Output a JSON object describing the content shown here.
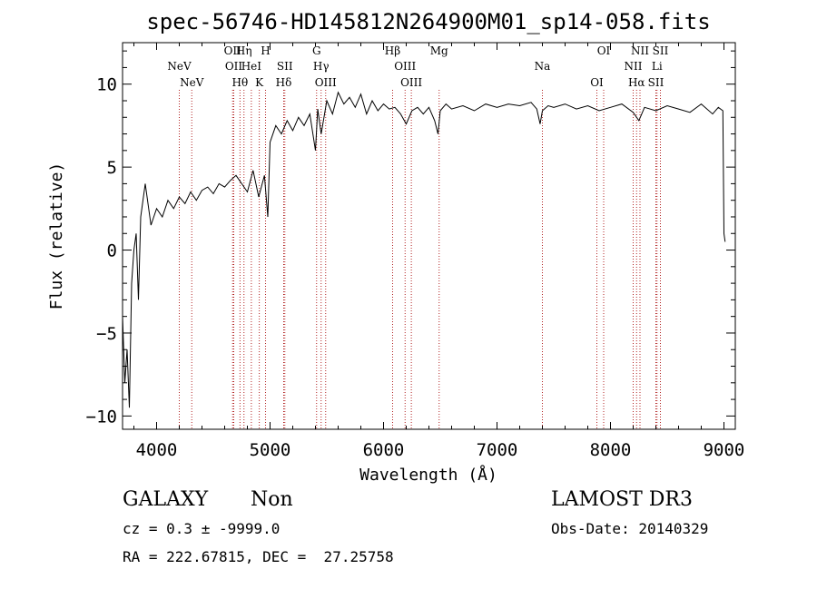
{
  "chart_data": {
    "type": "line",
    "title": "spec-56746-HD145812N264900M01_sp14-058.fits",
    "xlabel": "Wavelength (Å)",
    "ylabel": "Flux (relative)",
    "xlim": [
      3700,
      9100
    ],
    "ylim": [
      -10.8,
      12.5
    ],
    "xticks": [
      4000,
      5000,
      6000,
      7000,
      8000,
      9000
    ],
    "yticks": [
      -10,
      -5,
      0,
      5,
      10
    ],
    "grid": false,
    "series": [
      {
        "values_x": [
          3700,
          3720,
          3740,
          3760,
          3780,
          3800,
          3820,
          3840,
          3860,
          3880,
          3900,
          3950,
          4000,
          4050,
          4100,
          4150,
          4200,
          4250,
          4300,
          4350,
          4400,
          4450,
          4500,
          4550,
          4600,
          4650,
          4700,
          4750,
          4800,
          4850,
          4900,
          4950,
          4980,
          5000,
          5050,
          5100,
          5150,
          5200,
          5250,
          5300,
          5350,
          5400,
          5420,
          5450,
          5500,
          5550,
          5600,
          5650,
          5700,
          5750,
          5800,
          5850,
          5900,
          5950,
          6000,
          6050,
          6100,
          6150,
          6200,
          6250,
          6300,
          6350,
          6400,
          6450,
          6480,
          6500,
          6550,
          6600,
          6700,
          6800,
          6900,
          7000,
          7100,
          7200,
          7300,
          7350,
          7380,
          7400,
          7450,
          7500,
          7600,
          7700,
          7800,
          7900,
          8000,
          8100,
          8200,
          8250,
          8300,
          8400,
          8500,
          8600,
          8700,
          8800,
          8900,
          8950,
          8990,
          9000,
          9010
        ],
        "values_y": [
          -4,
          -8,
          -6,
          -9.5,
          -2,
          0,
          1,
          -3,
          2,
          3,
          4,
          1.5,
          2.5,
          2,
          3,
          2.5,
          3.2,
          2.8,
          3.5,
          3,
          3.6,
          3.8,
          3.4,
          4,
          3.8,
          4.2,
          4.5,
          4,
          3.5,
          4.8,
          3.2,
          4.5,
          2,
          6.5,
          7.5,
          7,
          7.8,
          7.2,
          8,
          7.5,
          8.2,
          6,
          8.5,
          7,
          9,
          8.2,
          9.5,
          8.8,
          9.2,
          8.6,
          9.4,
          8.2,
          9,
          8.4,
          8.8,
          8.5,
          8.6,
          8.2,
          7.6,
          8.4,
          8.6,
          8.2,
          8.6,
          7.8,
          7,
          8.4,
          8.8,
          8.5,
          8.7,
          8.4,
          8.8,
          8.6,
          8.8,
          8.7,
          8.9,
          8.5,
          7.6,
          8.4,
          8.7,
          8.6,
          8.8,
          8.5,
          8.7,
          8.4,
          8.6,
          8.8,
          8.3,
          7.8,
          8.6,
          8.4,
          8.7,
          8.5,
          8.3,
          8.8,
          8.2,
          8.6,
          8.4,
          1,
          0.5
        ]
      }
    ],
    "spectral_lines": [
      {
        "label": "NeV",
        "x": 4200,
        "row": 1
      },
      {
        "label": "NeV",
        "x": 4310,
        "row": 2
      },
      {
        "label": "OII",
        "x": 4670,
        "row": 0
      },
      {
        "label": "OII",
        "x": 4680,
        "row": 1
      },
      {
        "label": "Hθ",
        "x": 4735,
        "row": 2
      },
      {
        "label": "Hη",
        "x": 4770,
        "row": 0
      },
      {
        "label": "HeI",
        "x": 4835,
        "row": 1
      },
      {
        "label": "K",
        "x": 4905,
        "row": 2
      },
      {
        "label": "H",
        "x": 4960,
        "row": 0
      },
      {
        "label": "Hδ",
        "x": 5120,
        "row": 2
      },
      {
        "label": "SII",
        "x": 5130,
        "row": 1
      },
      {
        "label": "G",
        "x": 5410,
        "row": 0
      },
      {
        "label": "Hγ",
        "x": 5450,
        "row": 1
      },
      {
        "label": "OIII",
        "x": 5490,
        "row": 2
      },
      {
        "label": "Hβ",
        "x": 6080,
        "row": 0
      },
      {
        "label": "OIII",
        "x": 6190,
        "row": 1
      },
      {
        "label": "OIII",
        "x": 6245,
        "row": 2
      },
      {
        "label": "Mg",
        "x": 6490,
        "row": 0
      },
      {
        "label": "Na",
        "x": 7400,
        "row": 1
      },
      {
        "label": "OI",
        "x": 7880,
        "row": 2
      },
      {
        "label": "OI",
        "x": 7940,
        "row": 0
      },
      {
        "label": "NII",
        "x": 8200,
        "row": 1
      },
      {
        "label": "Hα",
        "x": 8230,
        "row": 2
      },
      {
        "label": "NII",
        "x": 8260,
        "row": 0
      },
      {
        "label": "SII",
        "x": 8400,
        "row": 2
      },
      {
        "label": "Li",
        "x": 8410,
        "row": 1
      },
      {
        "label": "SII",
        "x": 8440,
        "row": 0
      }
    ]
  },
  "info": {
    "class": "GALAXY",
    "subclass": "Non",
    "survey": "LAMOST DR3",
    "cz": "cz = 0.3 ± -9999.0",
    "obs_date": "Obs-Date: 20140329",
    "radec": "RA = 222.67815, DEC =  27.25758"
  },
  "colors": {
    "spectrum": "#000000",
    "line_marker": "#b22222"
  }
}
